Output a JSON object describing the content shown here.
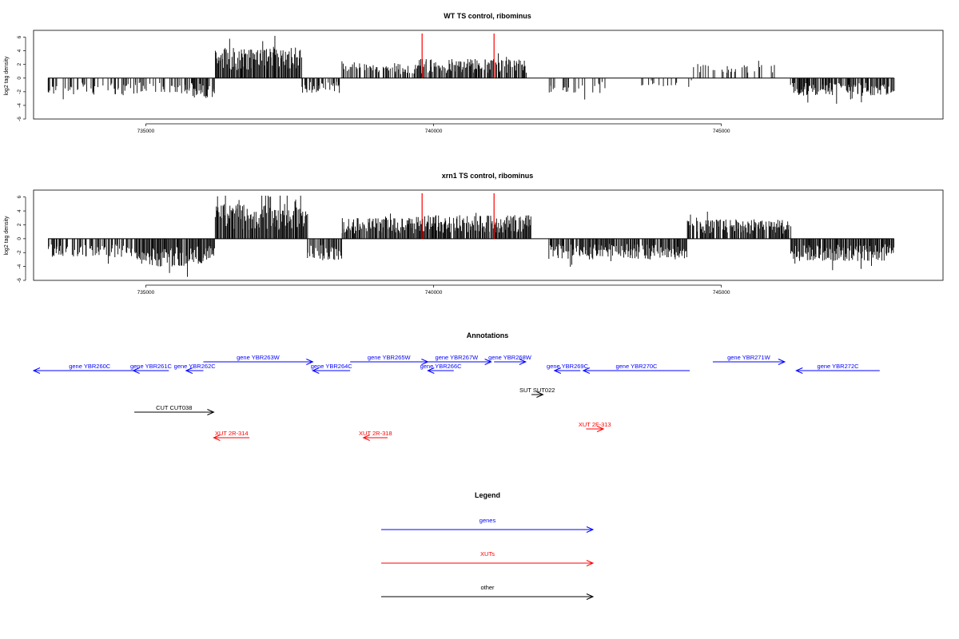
{
  "chart_data": [
    {
      "type": "bar",
      "title": "WT TS control, ribominus",
      "ylabel": "log2 tag density",
      "xlabel": "",
      "xlim": [
        733050,
        748850
      ],
      "ylim": [
        -6,
        7
      ],
      "yticks": [
        6,
        4,
        2,
        0,
        -2,
        -4,
        -6
      ],
      "xticks": [
        735000,
        740000,
        745000
      ],
      "grid": false,
      "bar_color": "#000000",
      "marker_color": "#ff0000",
      "markers_x": [
        739800,
        741050
      ],
      "segments": [
        {
          "start": 733300,
          "end": 735800,
          "sign": -1,
          "amp": 2.4,
          "density": 0.4
        },
        {
          "start": 735800,
          "end": 736200,
          "sign": -1,
          "amp": 3.0,
          "density": 0.8
        },
        {
          "start": 736200,
          "end": 737700,
          "sign": 1,
          "amp": 4.6,
          "density": 1.0
        },
        {
          "start": 737700,
          "end": 738400,
          "sign": -1,
          "amp": 2.2,
          "density": 0.5
        },
        {
          "start": 738400,
          "end": 739700,
          "sign": 1,
          "amp": 2.2,
          "density": 0.55
        },
        {
          "start": 739700,
          "end": 741600,
          "sign": 1,
          "amp": 2.8,
          "density": 0.85
        },
        {
          "start": 742000,
          "end": 743000,
          "sign": -1,
          "amp": 2.2,
          "density": 0.35
        },
        {
          "start": 743600,
          "end": 744500,
          "sign": -1,
          "amp": 1.2,
          "density": 0.2
        },
        {
          "start": 744500,
          "end": 746000,
          "sign": 1,
          "amp": 2.0,
          "density": 0.3
        },
        {
          "start": 746200,
          "end": 748000,
          "sign": -1,
          "amp": 2.6,
          "density": 0.85
        }
      ]
    },
    {
      "type": "bar",
      "title": "xrn1 TS control, ribominus",
      "ylabel": "log2 tag density",
      "xlabel": "",
      "xlim": [
        733050,
        748850
      ],
      "ylim": [
        -6,
        7
      ],
      "yticks": [
        6,
        4,
        2,
        0,
        -2,
        -4,
        -6
      ],
      "xticks": [
        735000,
        740000,
        745000
      ],
      "grid": false,
      "bar_color": "#000000",
      "marker_color": "#ff0000",
      "markers_x": [
        739800,
        741050
      ],
      "segments": [
        {
          "start": 733300,
          "end": 734800,
          "sign": -1,
          "amp": 2.6,
          "density": 0.6
        },
        {
          "start": 734800,
          "end": 735800,
          "sign": -1,
          "amp": 4.0,
          "density": 0.95
        },
        {
          "start": 735800,
          "end": 736200,
          "sign": -1,
          "amp": 3.6,
          "density": 1.0
        },
        {
          "start": 736200,
          "end": 737800,
          "sign": 1,
          "amp": 5.0,
          "density": 1.0
        },
        {
          "start": 737800,
          "end": 738400,
          "sign": -1,
          "amp": 3.2,
          "density": 0.8
        },
        {
          "start": 738400,
          "end": 739700,
          "sign": 1,
          "amp": 3.0,
          "density": 0.95
        },
        {
          "start": 739700,
          "end": 741700,
          "sign": 1,
          "amp": 3.4,
          "density": 0.95
        },
        {
          "start": 742000,
          "end": 744400,
          "sign": -1,
          "amp": 3.0,
          "density": 0.85
        },
        {
          "start": 744400,
          "end": 746200,
          "sign": 1,
          "amp": 2.8,
          "density": 0.9
        },
        {
          "start": 746200,
          "end": 748000,
          "sign": -1,
          "amp": 3.2,
          "density": 0.95
        }
      ]
    }
  ],
  "annotations": {
    "title": "Annotations",
    "colors": {
      "gene": "#0000ff",
      "xut": "#ff0000",
      "other": "#000000"
    },
    "features": [
      {
        "label": "gene YBR260C",
        "kind": "gene",
        "start": 733050,
        "end": 735000,
        "dir": "left",
        "row": 2
      },
      {
        "label": "gene YBR261C",
        "kind": "gene",
        "start": 734780,
        "end": 735400,
        "dir": "left",
        "row": 2
      },
      {
        "label": "gene YBR262C",
        "kind": "gene",
        "start": 735700,
        "end": 736000,
        "dir": "left",
        "row": 2
      },
      {
        "label": "gene YBR263W",
        "kind": "gene",
        "start": 736000,
        "end": 737900,
        "dir": "right",
        "row": 1
      },
      {
        "label": "gene YBR264C",
        "kind": "gene",
        "start": 737900,
        "end": 738550,
        "dir": "left",
        "row": 2
      },
      {
        "label": "gene YBR265W",
        "kind": "gene",
        "start": 738550,
        "end": 739900,
        "dir": "right",
        "row": 1
      },
      {
        "label": "gene YBR266C",
        "kind": "gene",
        "start": 739900,
        "end": 740350,
        "dir": "left",
        "row": 2
      },
      {
        "label": "gene YBR267W",
        "kind": "gene",
        "start": 739800,
        "end": 741000,
        "dir": "right",
        "row": 1
      },
      {
        "label": "gene YBR268W",
        "kind": "gene",
        "start": 741050,
        "end": 741600,
        "dir": "right",
        "row": 1
      },
      {
        "label": "gene YBR269C",
        "kind": "gene",
        "start": 742100,
        "end": 742550,
        "dir": "left",
        "row": 2
      },
      {
        "label": "gene YBR270C",
        "kind": "gene",
        "start": 742600,
        "end": 744450,
        "dir": "left",
        "row": 2
      },
      {
        "label": "gene YBR271W",
        "kind": "gene",
        "start": 744850,
        "end": 746100,
        "dir": "right",
        "row": 1
      },
      {
        "label": "gene YBR272C",
        "kind": "gene",
        "start": 746300,
        "end": 747750,
        "dir": "left",
        "row": 2
      },
      {
        "label": "SUT SUT022",
        "kind": "other",
        "start": 741700,
        "end": 741900,
        "dir": "right",
        "row": 3
      },
      {
        "label": "CUT CUT038",
        "kind": "other",
        "start": 734800,
        "end": 736180,
        "dir": "right",
        "row": 4
      },
      {
        "label": "XUT 2F-313",
        "kind": "xut",
        "start": 742650,
        "end": 742950,
        "dir": "right",
        "row": 5
      },
      {
        "label": "XUT 2R-314",
        "kind": "xut",
        "start": 736180,
        "end": 736800,
        "dir": "left",
        "row": 6
      },
      {
        "label": "XUT 2R-318",
        "kind": "xut",
        "start": 738780,
        "end": 739200,
        "dir": "left",
        "row": 6
      }
    ]
  },
  "legend": {
    "title": "Legend",
    "items": [
      {
        "label": "genes",
        "kind": "gene"
      },
      {
        "label": "XUTs",
        "kind": "xut"
      },
      {
        "label": "other",
        "kind": "other"
      }
    ]
  }
}
